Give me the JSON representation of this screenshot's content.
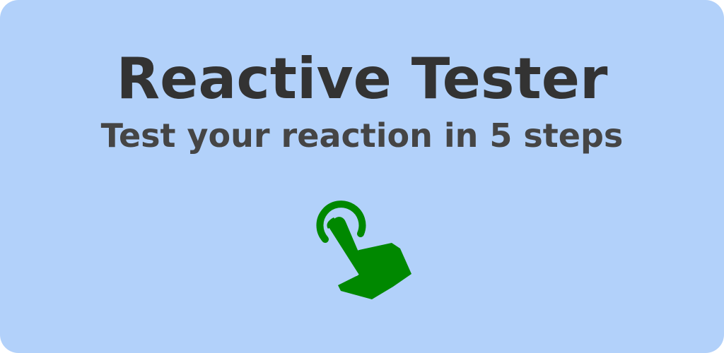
{
  "banner": {
    "title": "Reactive Tester",
    "subtitle": "Test your reaction in 5 steps",
    "icon": "tap-finger-icon",
    "colors": {
      "background": "#b2d1fa",
      "title": "#333333",
      "subtitle": "#454545",
      "icon": "#008800"
    }
  }
}
